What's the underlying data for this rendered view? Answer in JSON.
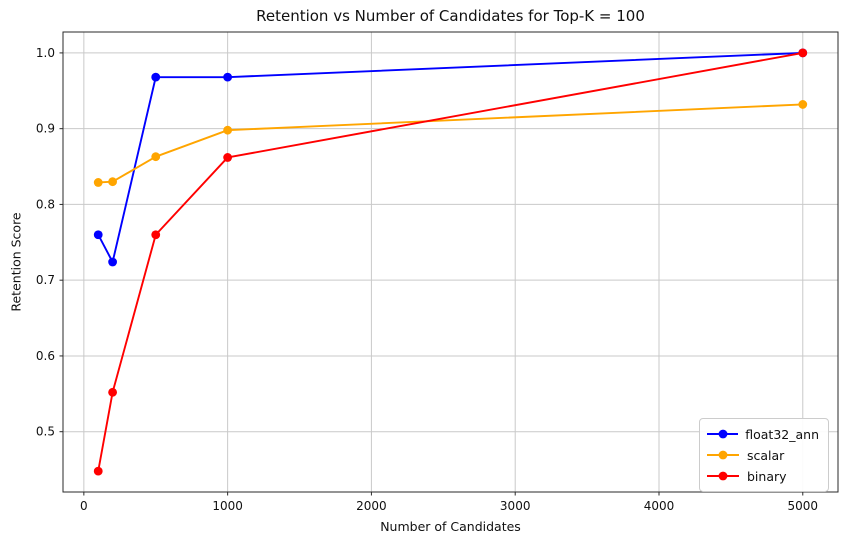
{
  "chart_data": {
    "type": "line",
    "title": "Retention vs Number of Candidates for Top-K = 100",
    "xlabel": "Number of Candidates",
    "ylabel": "Retention Score",
    "x": [
      100,
      200,
      500,
      1000,
      5000
    ],
    "series": [
      {
        "name": "float32_ann",
        "color": "#0000ff",
        "values": [
          0.76,
          0.724,
          0.968,
          0.968,
          1.0
        ]
      },
      {
        "name": "scalar",
        "color": "#ffa500",
        "values": [
          0.829,
          0.83,
          0.863,
          0.898,
          0.932
        ]
      },
      {
        "name": "binary",
        "color": "#ff0000",
        "values": [
          0.448,
          0.552,
          0.76,
          0.862,
          1.0
        ]
      }
    ],
    "xlim": [
      -145,
      5245
    ],
    "ylim": [
      0.4204,
      1.0276
    ],
    "xticks": [
      0,
      1000,
      2000,
      3000,
      4000,
      5000
    ],
    "xtick_labels": [
      "0",
      "1000",
      "2000",
      "3000",
      "4000",
      "5000"
    ],
    "yticks": [
      0.5,
      0.6,
      0.7,
      0.8,
      0.9,
      1.0
    ],
    "ytick_labels": [
      "0.5",
      "0.6",
      "0.7",
      "0.8",
      "0.9",
      "1.0"
    ],
    "grid": true,
    "legend": {
      "position": "lower-right",
      "entries": [
        "float32_ann",
        "scalar",
        "binary"
      ]
    },
    "colors": {
      "grid": "#c9c9c9",
      "spine": "#2a2a2a",
      "tick": "#2a2a2a",
      "text": "#111111",
      "background": "#ffffff"
    }
  }
}
